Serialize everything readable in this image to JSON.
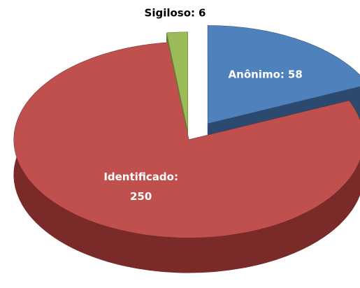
{
  "chart_data": {
    "type": "pie3d",
    "categories": [
      "Anônimo:",
      "Identificado:",
      "Sigiloso:"
    ],
    "values": [
      58,
      250,
      6
    ],
    "colors": [
      "#4f81bd",
      "#c0504d",
      "#9bbb59"
    ],
    "side_colors": [
      "#2c4a70",
      "#7a2a28",
      "#5f7a32"
    ]
  }
}
